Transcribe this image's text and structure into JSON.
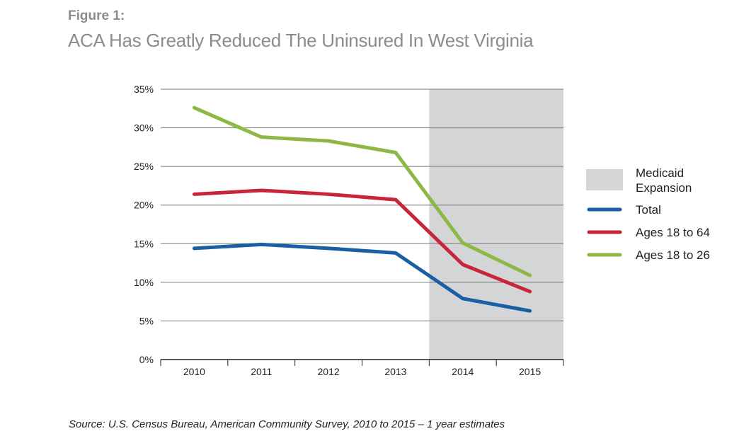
{
  "figure_label": "Figure 1:",
  "figure_title": "ACA Has Greatly Reduced The Uninsured In West Virginia",
  "source": "Source: U.S. Census Bureau, American Community Survey, 2010 to 2015 – 1 year estimates",
  "chart_data": {
    "type": "line",
    "title": "ACA Has Greatly Reduced The Uninsured In West Virginia",
    "xlabel": "",
    "ylabel": "",
    "categories": [
      "2010",
      "2011",
      "2012",
      "2013",
      "2014",
      "2015"
    ],
    "ylim": [
      0,
      35
    ],
    "yticks": [
      0,
      5,
      10,
      15,
      20,
      25,
      30,
      35
    ],
    "ytick_labels": [
      "0%",
      "5%",
      "10%",
      "15%",
      "20%",
      "25%",
      "30%",
      "35%"
    ],
    "grid": true,
    "legend_position": "right",
    "shaded_region": {
      "label_line1": "Medicaid",
      "label_line2": "Expansion",
      "start": "2014",
      "end": "2015",
      "color": "#d4d5d7"
    },
    "series": [
      {
        "name": "Total",
        "color": "#1a5fa3",
        "values": [
          14.4,
          14.9,
          14.4,
          13.8,
          7.9,
          6.3
        ]
      },
      {
        "name": "Ages 18 to 64",
        "color": "#c8243a",
        "values": [
          21.4,
          21.9,
          21.4,
          20.7,
          12.3,
          8.8
        ]
      },
      {
        "name": "Ages 18 to 26",
        "color": "#8db846",
        "values": [
          32.6,
          28.8,
          28.3,
          26.8,
          15.1,
          10.9
        ]
      }
    ]
  }
}
